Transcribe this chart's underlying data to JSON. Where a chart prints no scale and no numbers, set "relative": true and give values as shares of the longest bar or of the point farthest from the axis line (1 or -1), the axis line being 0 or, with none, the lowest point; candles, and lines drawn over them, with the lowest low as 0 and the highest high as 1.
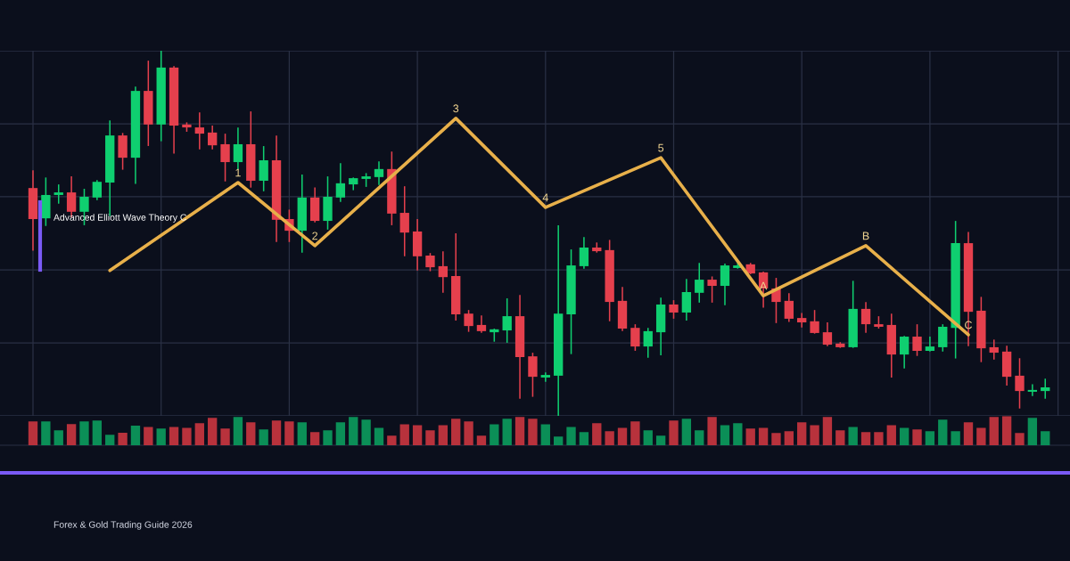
{
  "chart_data": [
    {
      "type": "candlestick",
      "relative": true,
      "grid": true,
      "tick_labels": false,
      "categories": [
        null,
        null,
        null,
        null,
        null,
        null,
        null,
        null,
        null,
        null,
        null,
        null,
        null,
        null,
        null,
        null,
        null,
        null,
        null,
        null,
        null,
        null,
        null,
        null,
        null,
        null,
        null,
        null,
        null,
        null,
        null,
        null,
        null,
        null,
        null,
        null,
        null,
        null,
        null,
        null,
        null,
        null,
        null,
        null,
        null,
        null,
        null,
        null,
        null,
        null,
        null,
        null,
        null,
        null,
        null,
        null,
        null,
        null,
        null,
        null,
        null,
        null,
        null,
        null,
        null,
        null,
        null,
        null,
        null,
        null,
        null,
        null,
        null,
        null,
        null,
        null,
        null,
        null,
        null,
        null
      ],
      "colors": [
        "#e5404d",
        "#0fcf70",
        "#0fcf70",
        "#e5404d",
        "#0fcf70",
        "#0fcf70",
        "#0fcf70",
        "#e5404d",
        "#0fcf70",
        "#e5404d",
        "#0fcf70",
        "#e5404d",
        "#e5404d",
        "#e5404d",
        "#e5404d",
        "#e5404d",
        "#0fcf70",
        "#e5404d",
        "#0fcf70",
        "#e5404d",
        "#e5404d",
        "#0fcf70",
        "#e5404d",
        "#0fcf70",
        "#0fcf70",
        "#0fcf70",
        "#0fcf70",
        "#0fcf70",
        "#e5404d",
        "#e5404d",
        "#e5404d",
        "#e5404d",
        "#e5404d",
        "#e5404d",
        "#e5404d",
        "#e5404d",
        "#0fcf70",
        "#0fcf70",
        "#e5404d",
        "#e5404d",
        "#0fcf70",
        "#0fcf70",
        "#0fcf70",
        "#0fcf70",
        "#e5404d",
        "#e5404d",
        "#e5404d",
        "#e5404d",
        "#0fcf70",
        "#0fcf70",
        "#e5404d",
        "#0fcf70",
        "#0fcf70",
        "#e5404d",
        "#0fcf70",
        "#0fcf70",
        "#e5404d",
        "#e5404d",
        "#e5404d",
        "#e5404d",
        "#e5404d",
        "#e5404d",
        "#e5404d",
        "#e5404d",
        "#0fcf70",
        "#e5404d",
        "#e5404d",
        "#e5404d",
        "#0fcf70",
        "#e5404d",
        "#0fcf70",
        "#0fcf70",
        "#0fcf70",
        "#e5404d",
        "#e5404d",
        "#e5404d",
        "#e5404d",
        "#e5404d",
        "#0fcf70",
        "#0fcf70"
      ],
      "ohlc": [
        [
          0.624,
          0.671,
          0.454,
          0.539
        ],
        [
          0.541,
          0.651,
          0.522,
          0.605
        ],
        [
          0.605,
          0.632,
          0.583,
          0.612
        ],
        [
          0.612,
          0.654,
          0.546,
          0.559
        ],
        [
          0.559,
          0.62,
          0.524,
          0.6
        ],
        [
          0.598,
          0.644,
          0.593,
          0.641
        ],
        [
          0.639,
          0.807,
          0.549,
          0.768
        ],
        [
          0.768,
          0.773,
          0.676,
          0.707
        ],
        [
          0.707,
          0.9,
          0.637,
          0.89
        ],
        [
          0.89,
          0.971,
          0.741,
          0.798
        ],
        [
          0.798,
          1,
          0.754,
          0.954
        ],
        [
          0.954,
          0.956,
          0.72,
          0.795
        ],
        [
          0.798,
          0.802,
          0.78,
          0.79
        ],
        [
          0.79,
          0.829,
          0.732,
          0.773
        ],
        [
          0.776,
          0.793,
          0.732,
          0.741
        ],
        [
          0.744,
          0.771,
          0.644,
          0.695
        ],
        [
          0.695,
          0.788,
          0.676,
          0.744
        ],
        [
          0.744,
          0.832,
          0.627,
          0.644
        ],
        [
          0.644,
          0.737,
          0.617,
          0.7
        ],
        [
          0.7,
          0.766,
          0.478,
          0.537
        ],
        [
          0.539,
          0.563,
          0.478,
          0.507
        ],
        [
          0.507,
          0.659,
          0.449,
          0.598
        ],
        [
          0.598,
          0.624,
          0.532,
          0.534
        ],
        [
          0.534,
          0.654,
          0.512,
          0.6
        ],
        [
          0.598,
          0.69,
          0.588,
          0.637
        ],
        [
          0.634,
          0.651,
          0.62,
          0.651
        ],
        [
          0.649,
          0.663,
          0.629,
          0.656
        ],
        [
          0.654,
          0.695,
          0.634,
          0.676
        ],
        [
          0.676,
          0.722,
          0.524,
          0.554
        ],
        [
          0.556,
          0.627,
          0.439,
          0.502
        ],
        [
          0.505,
          0.537,
          0.4,
          0.437
        ],
        [
          0.439,
          0.444,
          0.398,
          0.407
        ],
        [
          0.41,
          0.449,
          0.339,
          0.38
        ],
        [
          0.383,
          0.498,
          0.263,
          0.278
        ],
        [
          0.28,
          0.288,
          0.232,
          0.246
        ],
        [
          0.249,
          0.273,
          0.229,
          0.232
        ],
        [
          0.229,
          0.237,
          0.205,
          0.237
        ],
        [
          0.234,
          0.32,
          0.202,
          0.273
        ],
        [
          0.273,
          0.329,
          0.049,
          0.161
        ],
        [
          0.163,
          0.171,
          0.054,
          0.107
        ],
        [
          0.105,
          0.117,
          0.095,
          0.112
        ],
        [
          0.11,
          0.52,
          0,
          0.28
        ],
        [
          0.278,
          0.454,
          0.171,
          0.412
        ],
        [
          0.41,
          0.488,
          0.405,
          0.461
        ],
        [
          0.461,
          0.473,
          0.449,
          0.451
        ],
        [
          0.454,
          0.48,
          0.261,
          0.312
        ],
        [
          0.315,
          0.351,
          0.234,
          0.239
        ],
        [
          0.241,
          0.249,
          0.18,
          0.19
        ],
        [
          0.19,
          0.239,
          0.161,
          0.232
        ],
        [
          0.229,
          0.322,
          0.168,
          0.305
        ],
        [
          0.305,
          0.315,
          0.268,
          0.283
        ],
        [
          0.283,
          0.373,
          0.263,
          0.339
        ],
        [
          0.337,
          0.417,
          0.312,
          0.373
        ],
        [
          0.373,
          0.38,
          0.312,
          0.356
        ],
        [
          0.356,
          0.415,
          0.305,
          0.412
        ],
        [
          0.405,
          0.42,
          0.405,
          0.412
        ],
        [
          0.415,
          0.417,
          0.39,
          0.39
        ],
        [
          0.393,
          0.393,
          0.298,
          0.349
        ],
        [
          0.349,
          0.376,
          0.256,
          0.312
        ],
        [
          0.315,
          0.334,
          0.259,
          0.266
        ],
        [
          0.268,
          0.28,
          0.244,
          0.256
        ],
        [
          0.259,
          0.288,
          0.227,
          0.227
        ],
        [
          0.229,
          0.254,
          0.193,
          0.195
        ],
        [
          0.198,
          0.2,
          0.188,
          0.188
        ],
        [
          0.188,
          0.368,
          0.188,
          0.293
        ],
        [
          0.293,
          0.31,
          0.229,
          0.251
        ],
        [
          0.251,
          0.271,
          0.241,
          0.244
        ],
        [
          0.249,
          0.278,
          0.107,
          0.168
        ],
        [
          0.168,
          0.217,
          0.132,
          0.217
        ],
        [
          0.217,
          0.249,
          0.166,
          0.178
        ],
        [
          0.178,
          0.215,
          0.178,
          0.19
        ],
        [
          0.188,
          0.249,
          0.178,
          0.244
        ],
        [
          0.241,
          0.532,
          0.159,
          0.473
        ],
        [
          0.473,
          0.502,
          0.193,
          0.285
        ],
        [
          0.288,
          0.324,
          0.149,
          0.185
        ],
        [
          0.188,
          0.207,
          0.156,
          0.173
        ],
        [
          0.176,
          0.19,
          0.085,
          0.107
        ],
        [
          0.11,
          0.156,
          0.022,
          0.068
        ],
        [
          0.066,
          0.085,
          0.056,
          0.071
        ],
        [
          0.068,
          0.1,
          0.049,
          0.078
        ]
      ],
      "series": [
        {
          "type": "line",
          "color": "#e8b04a",
          "values": [
            null,
            null,
            null,
            null,
            null,
            null,
            0.398,
            null,
            null,
            null,
            null,
            null,
            null,
            null,
            null,
            null,
            0.639,
            null,
            null,
            null,
            null,
            null,
            0.466,
            null,
            null,
            null,
            null,
            null,
            null,
            null,
            null,
            null,
            null,
            0.815,
            null,
            null,
            null,
            null,
            null,
            null,
            0.571,
            null,
            null,
            null,
            null,
            null,
            null,
            null,
            null,
            0.707,
            null,
            null,
            null,
            null,
            null,
            null,
            null,
            0.329,
            null,
            null,
            null,
            null,
            null,
            null,
            null,
            0.466,
            null,
            null,
            null,
            null,
            null,
            null,
            null,
            0.222,
            null,
            null,
            null,
            null,
            null,
            null
          ]
        }
      ],
      "annotations": [
        {
          "text": "1",
          "y": 0.639
        },
        {
          "text": "2",
          "y": 0.466
        },
        {
          "text": "3",
          "y": 0.815
        },
        {
          "text": "4",
          "y": 0.571
        },
        {
          "text": "5",
          "y": 0.707
        },
        {
          "text": "A",
          "y": 0.329
        },
        {
          "text": "B",
          "y": 0.466
        },
        {
          "text": "C",
          "y": 0.222
        },
        "Advanced Elliott Wave Theory C",
        "Forex & Gold Trading Guide 2026"
      ]
    },
    {
      "type": "bar",
      "relative": true,
      "tick_labels": false,
      "categories": [
        null,
        null,
        null,
        null,
        null,
        null,
        null,
        null,
        null,
        null,
        null,
        null,
        null,
        null,
        null,
        null,
        null,
        null,
        null,
        null,
        null,
        null,
        null,
        null,
        null,
        null,
        null,
        null,
        null,
        null,
        null,
        null,
        null,
        null,
        null,
        null,
        null,
        null,
        null,
        null,
        null,
        null,
        null,
        null,
        null,
        null,
        null,
        null,
        null,
        null,
        null,
        null,
        null,
        null,
        null,
        null,
        null,
        null,
        null,
        null,
        null,
        null,
        null,
        null,
        null,
        null,
        null,
        null,
        null,
        null,
        null,
        null,
        null,
        null,
        null,
        null,
        null,
        null,
        null,
        null
      ],
      "values": [
        0.82,
        0.82,
        0.51,
        0.73,
        0.82,
        0.85,
        0.36,
        0.43,
        0.67,
        0.63,
        0.57,
        0.63,
        0.6,
        0.76,
        0.94,
        0.57,
        0.97,
        0.79,
        0.54,
        0.85,
        0.82,
        0.79,
        0.45,
        0.51,
        0.79,
        0.97,
        0.88,
        0.6,
        0.33,
        0.72,
        0.69,
        0.51,
        0.69,
        0.91,
        0.82,
        0.33,
        0.72,
        0.91,
        0.97,
        0.91,
        0.72,
        0.3,
        0.63,
        0.45,
        0.76,
        0.48,
        0.6,
        0.82,
        0.51,
        0.33,
        0.85,
        0.91,
        0.51,
        0.97,
        0.69,
        0.76,
        0.57,
        0.6,
        0.42,
        0.48,
        0.79,
        0.69,
        0.97,
        0.51,
        0.63,
        0.45,
        0.45,
        0.69,
        0.6,
        0.54,
        0.48,
        0.88,
        0.48,
        0.79,
        0.6,
        0.97,
        1,
        0.42,
        0.94,
        0.48
      ],
      "colors": [
        "#b8323c",
        "#0b8f57",
        "#0b8f57",
        "#b8323c",
        "#0b8f57",
        "#0b8f57",
        "#0b8f57",
        "#b8323c",
        "#0b8f57",
        "#b8323c",
        "#0b8f57",
        "#b8323c",
        "#b8323c",
        "#b8323c",
        "#b8323c",
        "#b8323c",
        "#0b8f57",
        "#b8323c",
        "#0b8f57",
        "#b8323c",
        "#b8323c",
        "#0b8f57",
        "#b8323c",
        "#0b8f57",
        "#0b8f57",
        "#0b8f57",
        "#0b8f57",
        "#0b8f57",
        "#b8323c",
        "#b8323c",
        "#b8323c",
        "#b8323c",
        "#b8323c",
        "#b8323c",
        "#b8323c",
        "#b8323c",
        "#0b8f57",
        "#0b8f57",
        "#b8323c",
        "#b8323c",
        "#0b8f57",
        "#0b8f57",
        "#0b8f57",
        "#0b8f57",
        "#b8323c",
        "#b8323c",
        "#b8323c",
        "#b8323c",
        "#0b8f57",
        "#0b8f57",
        "#b8323c",
        "#0b8f57",
        "#0b8f57",
        "#b8323c",
        "#0b8f57",
        "#0b8f57",
        "#b8323c",
        "#b8323c",
        "#b8323c",
        "#b8323c",
        "#b8323c",
        "#b8323c",
        "#b8323c",
        "#b8323c",
        "#0b8f57",
        "#b8323c",
        "#b8323c",
        "#b8323c",
        "#0b8f57",
        "#b8323c",
        "#0b8f57",
        "#0b8f57",
        "#0b8f57",
        "#b8323c",
        "#b8323c",
        "#b8323c",
        "#b8323c",
        "#b8323c",
        "#0b8f57",
        "#0b8f57"
      ]
    }
  ]
}
